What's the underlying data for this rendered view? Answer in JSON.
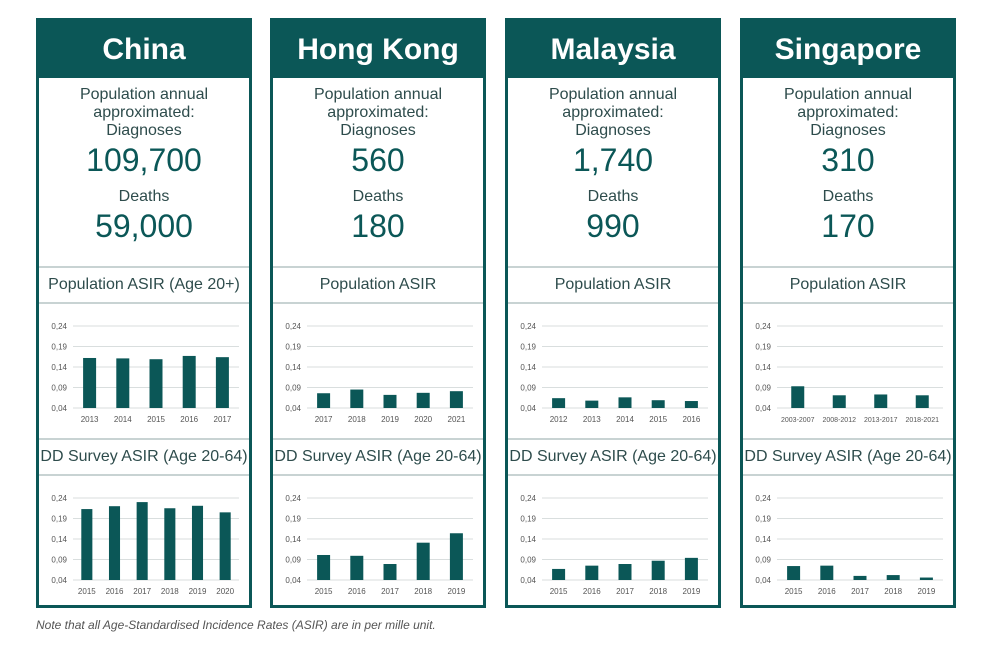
{
  "labels": {
    "population_annual": "Population annual\napproximated:\nDiagnoses",
    "deaths": "Deaths"
  },
  "colors": {
    "accent": "#0b5757",
    "bar": "#0b5757",
    "grid": "#d9dede",
    "tick": "#555555"
  },
  "footnote": "Note that all Age-Standardised Incidence Rates (ASIR) are in per mille unit.",
  "chart_data": [
    {
      "country": "China",
      "diagnoses": "109,700",
      "deaths": "59,000",
      "charts": [
        {
          "type": "bar",
          "title": "Population ASIR (Age 20+)",
          "categories": [
            "2013",
            "2014",
            "2015",
            "2016",
            "2017"
          ],
          "values": [
            0.162,
            0.161,
            0.159,
            0.167,
            0.164
          ],
          "yticks": [
            "0,04",
            "0,09",
            "0,14",
            "0,19",
            "0,24"
          ],
          "ylim": [
            0.04,
            0.24
          ],
          "grid": true
        },
        {
          "type": "bar",
          "title": "DD Survey ASIR (Age 20-64)",
          "categories": [
            "2015",
            "2016",
            "2017",
            "2018",
            "2019",
            "2020"
          ],
          "values": [
            0.213,
            0.22,
            0.23,
            0.215,
            0.221,
            0.205
          ],
          "yticks": [
            "0,04",
            "0,09",
            "0,14",
            "0,19",
            "0,24"
          ],
          "ylim": [
            0.04,
            0.24
          ],
          "grid": true
        }
      ]
    },
    {
      "country": "Hong Kong",
      "diagnoses": "560",
      "deaths": "180",
      "charts": [
        {
          "type": "bar",
          "title": "Population ASIR",
          "categories": [
            "2017",
            "2018",
            "2019",
            "2020",
            "2021"
          ],
          "values": [
            0.076,
            0.085,
            0.072,
            0.077,
            0.081
          ],
          "yticks": [
            "0,04",
            "0,09",
            "0,14",
            "0,19",
            "0,24"
          ],
          "ylim": [
            0.04,
            0.24
          ],
          "grid": true
        },
        {
          "type": "bar",
          "title": "DD Survey ASIR (Age 20-64)",
          "categories": [
            "2015",
            "2016",
            "2017",
            "2018",
            "2019"
          ],
          "values": [
            0.101,
            0.099,
            0.079,
            0.131,
            0.154
          ],
          "yticks": [
            "0,04",
            "0,09",
            "0,14",
            "0,19",
            "0,24"
          ],
          "ylim": [
            0.04,
            0.24
          ],
          "grid": true
        }
      ]
    },
    {
      "country": "Malaysia",
      "diagnoses": "1,740",
      "deaths": "990",
      "charts": [
        {
          "type": "bar",
          "title": "Population ASIR",
          "categories": [
            "2012",
            "2013",
            "2014",
            "2015",
            "2016"
          ],
          "values": [
            0.064,
            0.058,
            0.066,
            0.059,
            0.057
          ],
          "yticks": [
            "0,04",
            "0,09",
            "0,14",
            "0,19",
            "0,24"
          ],
          "ylim": [
            0.04,
            0.24
          ],
          "grid": true
        },
        {
          "type": "bar",
          "title": "DD Survey ASIR (Age 20-64)",
          "categories": [
            "2015",
            "2016",
            "2017",
            "2018",
            "2019"
          ],
          "values": [
            0.067,
            0.075,
            0.079,
            0.087,
            0.094
          ],
          "yticks": [
            "0,04",
            "0,09",
            "0,14",
            "0,19",
            "0,24"
          ],
          "ylim": [
            0.04,
            0.24
          ],
          "grid": true
        }
      ]
    },
    {
      "country": "Singapore",
      "diagnoses": "310",
      "deaths": "170",
      "charts": [
        {
          "type": "bar",
          "title": "Population ASIR",
          "categories": [
            "2003-2007",
            "2008-2012",
            "2013-2017",
            "2018-2021"
          ],
          "values": [
            0.093,
            0.071,
            0.073,
            0.071
          ],
          "yticks": [
            "0,04",
            "0,09",
            "0,14",
            "0,19",
            "0,24"
          ],
          "ylim": [
            0.04,
            0.24
          ],
          "grid": true
        },
        {
          "type": "bar",
          "title": "DD Survey ASIR (Age 20-64)",
          "categories": [
            "2015",
            "2016",
            "2017",
            "2018",
            "2019"
          ],
          "values": [
            0.074,
            0.075,
            0.05,
            0.052,
            0.046
          ],
          "yticks": [
            "0,04",
            "0,09",
            "0,14",
            "0,19",
            "0,24"
          ],
          "ylim": [
            0.04,
            0.24
          ],
          "grid": true
        }
      ]
    }
  ]
}
